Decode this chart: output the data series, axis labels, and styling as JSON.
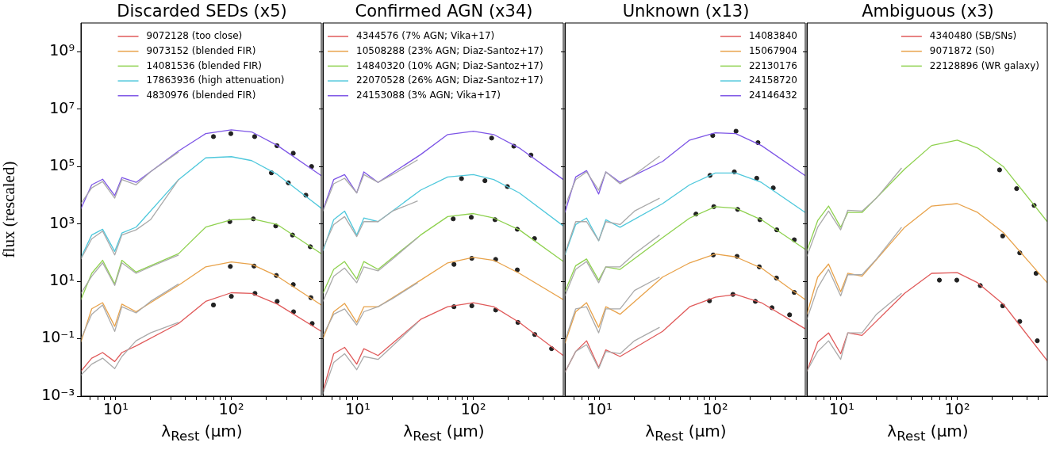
{
  "chart_data": [
    {
      "type": "line",
      "title": "Discarded SEDs (x5)",
      "xlabel": "λ$_{Rest}$ (μm)",
      "ylabel": "flux (rescaled)",
      "log": "xy",
      "legend": "top",
      "xlim": [
        5,
        600
      ],
      "ylim": [
        0.001,
        10000000000
      ],
      "xticks": [
        {
          "value": 6,
          "label": null
        },
        {
          "value": 7,
          "label": null
        },
        {
          "value": 8,
          "label": null
        },
        {
          "value": 9,
          "label": null
        },
        {
          "value": 10,
          "label": "10¹"
        },
        {
          "value": 20,
          "label": null
        },
        {
          "value": 30,
          "label": null
        },
        {
          "value": 40,
          "label": null
        },
        {
          "value": 50,
          "label": null
        },
        {
          "value": 60,
          "label": null
        },
        {
          "value": 70,
          "label": null
        },
        {
          "value": 80,
          "label": null
        },
        {
          "value": 90,
          "label": null
        },
        {
          "value": 100,
          "label": "10²"
        },
        {
          "value": 200,
          "label": null
        },
        {
          "value": 300,
          "label": null
        },
        {
          "value": 400,
          "label": null
        },
        {
          "value": 500,
          "label": null
        }
      ],
      "yticks": [
        {
          "value": 0.001,
          "label": "10⁻³"
        },
        {
          "value": 0.1,
          "label": "10⁻¹"
        },
        {
          "value": 10,
          "label": "10¹"
        },
        {
          "value": 1000,
          "label": "10³"
        },
        {
          "value": 100000,
          "label": "10⁵"
        },
        {
          "value": 10000000,
          "label": "10⁷"
        },
        {
          "value": 1000000000,
          "label": "10⁹"
        }
      ],
      "series": [
        {
          "type": "line",
          "color": "#aaaaaa",
          "x": [
            5,
            6.2,
            7.7,
            9.8,
            11.3,
            15,
            20,
            35
          ],
          "values": [
            5100,
            18000,
            30000,
            7900,
            35000,
            23000,
            66000,
            320000
          ]
        },
        {
          "type": "line",
          "color": "#aaaaaa",
          "x": [
            5,
            6.2,
            7.7,
            9.8,
            11.3,
            15,
            20,
            35
          ],
          "values": [
            60,
            300,
            560,
            83,
            410,
            620,
            1400,
            35000
          ]
        },
        {
          "type": "line",
          "color": "#aaaaaa",
          "x": [
            5,
            6.2,
            7.7,
            9.8,
            11.3,
            15,
            20,
            35
          ],
          "values": [
            3.8,
            15,
            44,
            7.2,
            44,
            19,
            32,
            83
          ]
        },
        {
          "type": "line",
          "color": "#aaaaaa",
          "x": [
            5,
            6.2,
            7.7,
            9.8,
            11.3,
            15,
            20,
            35
          ],
          "values": [
            0.1,
            0.71,
            1.5,
            0.18,
            1.3,
            0.79,
            2.0,
            8.1
          ]
        },
        {
          "type": "line",
          "color": "#aaaaaa",
          "x": [
            5,
            6.2,
            7.7,
            9.8,
            11.3,
            15,
            20,
            35
          ],
          "values": [
            0.0054,
            0.013,
            0.021,
            0.0091,
            0.024,
            0.085,
            0.16,
            0.37
          ]
        },
        {
          "type": "line",
          "name": "9072128 (too close)",
          "color": "#e05a5a",
          "x": [
            5,
            6.2,
            7.7,
            9.8,
            11.3,
            15,
            35,
            60,
            100,
            150,
            250,
            600
          ],
          "values": [
            0.0074,
            0.021,
            0.033,
            0.016,
            0.033,
            0.056,
            0.34,
            2.0,
            4.0,
            3.8,
            1.6,
            0.18
          ]
        },
        {
          "type": "line",
          "name": "9073152 (blended FIR)",
          "color": "#e8a24a",
          "x": [
            5,
            6.2,
            7.7,
            9.8,
            11.3,
            15,
            35,
            60,
            100,
            150,
            250,
            600
          ],
          "values": [
            0.077,
            1.1,
            1.8,
            0.27,
            1.6,
            0.87,
            7.3,
            32,
            47,
            39,
            15,
            1.5
          ]
        },
        {
          "type": "line",
          "name": "14081536 (blended FIR)",
          "color": "#8ed14e",
          "x": [
            5,
            6.2,
            7.7,
            9.8,
            11.3,
            15,
            35,
            60,
            100,
            150,
            250,
            600
          ],
          "values": [
            2.3,
            19,
            54,
            8.1,
            54,
            21,
            92,
            770,
            1400,
            1500,
            950,
            92
          ]
        },
        {
          "type": "line",
          "name": "17863936 (high attenuation)",
          "color": "#4fc8dc",
          "x": [
            5,
            6.2,
            7.7,
            9.8,
            11.3,
            15,
            35,
            60,
            100,
            150,
            250,
            600
          ],
          "values": [
            67,
            410,
            650,
            110,
            480,
            770,
            35000,
            200000,
            220000,
            160000,
            53000,
            3500
          ]
        },
        {
          "type": "line",
          "name": "4830976 (blended FIR)",
          "color": "#7d55e6",
          "x": [
            5,
            6.2,
            7.7,
            9.8,
            11.3,
            15,
            35,
            60,
            100,
            150,
            250,
            600
          ],
          "values": [
            3400,
            23000,
            36000,
            9700,
            41000,
            28000,
            350000,
            1400000,
            1900000,
            1600000,
            540000,
            48000
          ]
        },
        {
          "type": "scatter",
          "marker": "circle",
          "color": "#222222",
          "x": [
            70,
            99,
            159,
            248,
            343,
            494,
            222,
            311,
            441,
            97,
            155,
            242,
            338,
            482,
            98,
            157,
            245,
            343,
            487,
            70,
            100,
            160,
            249,
            345,
            500
          ],
          "values": [
            1100000,
            1400000,
            1100000,
            530000,
            290000,
            100000,
            60000,
            27000,
            10000,
            1200,
            1500,
            850,
            410,
            160,
            33,
            34,
            16,
            7.7,
            2.7,
            1.5,
            3.0,
            3.8,
            2.0,
            0.87,
            0.34
          ]
        }
      ]
    },
    {
      "type": "line",
      "title": "Confirmed AGN (x34)",
      "xlabel": "λ$_{Rest}$ (μm)",
      "log": "xy",
      "legend": "top left",
      "tick_labels": "x",
      "xlim": [
        5,
        600
      ],
      "ylim": [
        0.001,
        10000000000
      ],
      "xticks": [
        {
          "value": 6,
          "label": null
        },
        {
          "value": 7,
          "label": null
        },
        {
          "value": 8,
          "label": null
        },
        {
          "value": 9,
          "label": null
        },
        {
          "value": 10,
          "label": "10¹"
        },
        {
          "value": 20,
          "label": null
        },
        {
          "value": 30,
          "label": null
        },
        {
          "value": 40,
          "label": null
        },
        {
          "value": 50,
          "label": null
        },
        {
          "value": 60,
          "label": null
        },
        {
          "value": 70,
          "label": null
        },
        {
          "value": 80,
          "label": null
        },
        {
          "value": 90,
          "label": null
        },
        {
          "value": 100,
          "label": "10²"
        },
        {
          "value": 200,
          "label": null
        },
        {
          "value": 300,
          "label": null
        },
        {
          "value": 400,
          "label": null
        },
        {
          "value": 500,
          "label": null
        }
      ],
      "yticks": [
        {
          "value": 0.001,
          "label": null
        },
        {
          "value": 0.1,
          "label": null
        },
        {
          "value": 10,
          "label": null
        },
        {
          "value": 1000,
          "label": null
        },
        {
          "value": 100000,
          "label": null
        },
        {
          "value": 10000000,
          "label": null
        },
        {
          "value": 1000000000,
          "label": null
        }
      ],
      "series": [
        {
          "type": "line",
          "color": "#aaaaaa",
          "x": [
            5,
            6.2,
            7.7,
            9.8,
            11.3,
            15,
            20,
            33
          ],
          "values": [
            2800,
            25000,
            39000,
            12000,
            52000,
            28000,
            52000,
            170000
          ]
        },
        {
          "type": "line",
          "color": "#aaaaaa",
          "x": [
            5,
            6.2,
            7.7,
            9.8,
            11.3,
            15,
            20,
            33
          ],
          "values": [
            140,
            950,
            1800,
            360,
            1200,
            1200,
            2800,
            6300
          ]
        },
        {
          "type": "line",
          "color": "#aaaaaa",
          "x": [
            5,
            6.2,
            7.7,
            9.8,
            11.3,
            15,
            20,
            33
          ],
          "values": [
            2.0,
            15,
            29,
            8.9,
            32,
            23,
            60,
            330
          ]
        },
        {
          "type": "line",
          "color": "#aaaaaa",
          "x": [
            5,
            6.2,
            7.7,
            9.8,
            11.3,
            15,
            20,
            33
          ],
          "values": [
            0.13,
            0.71,
            1.1,
            0.3,
            0.87,
            1.3,
            2.5,
            8.9
          ]
        },
        {
          "type": "line",
          "color": "#aaaaaa",
          "x": [
            5,
            6.2,
            7.7,
            9.8,
            11.3,
            15,
            20,
            33
          ],
          "values": [
            0.0012,
            0.015,
            0.03,
            0.0083,
            0.024,
            0.019,
            0.056,
            0.37
          ]
        },
        {
          "type": "line",
          "name": "4344576 (7% AGN; Vika+17)",
          "color": "#e05a5a",
          "x": [
            5,
            6.2,
            7.7,
            9.8,
            11.3,
            15,
            35,
            60,
            100,
            150,
            250,
            600
          ],
          "values": [
            0.0015,
            0.03,
            0.05,
            0.013,
            0.045,
            0.026,
            0.47,
            1.3,
            1.8,
            1.3,
            0.37,
            0.026
          ]
        },
        {
          "type": "line",
          "name": "10508288 (23% AGN; Diaz-Santoz+17)",
          "color": "#e8a24a",
          "x": [
            5,
            6.2,
            7.7,
            9.8,
            11.3,
            15,
            35,
            60,
            100,
            150,
            250,
            600
          ],
          "values": [
            0.1,
            0.87,
            1.7,
            0.37,
            1.3,
            1.3,
            11,
            44,
            68,
            54,
            19,
            2.3
          ]
        },
        {
          "type": "line",
          "name": "14840320 (10% AGN; Diaz-Santoz+17)",
          "color": "#8ed14e",
          "x": [
            5,
            6.2,
            7.7,
            9.8,
            11.3,
            15,
            35,
            60,
            100,
            150,
            250,
            600
          ],
          "values": [
            3.8,
            26,
            49,
            12,
            49,
            26,
            410,
            1800,
            2300,
            1600,
            620,
            49
          ]
        },
        {
          "type": "line",
          "name": "22070528 (26% AGN; Diaz-Santoz+17)",
          "color": "#4fc8dc",
          "x": [
            5,
            6.2,
            7.7,
            9.8,
            11.3,
            15,
            35,
            60,
            100,
            150,
            250,
            600
          ],
          "values": [
            115,
            1400,
            2800,
            410,
            1600,
            1200,
            15000,
            43000,
            52000,
            35000,
            12000,
            850
          ]
        },
        {
          "type": "line",
          "name": "24153088 (3% AGN; Vika+17)",
          "color": "#7d55e6",
          "x": [
            5,
            6.2,
            7.7,
            9.8,
            11.3,
            15,
            35,
            60,
            100,
            150,
            250,
            600
          ],
          "values": [
            3000,
            35000,
            52000,
            12000,
            65000,
            28000,
            260000,
            1300000,
            1700000,
            1300000,
            440000,
            35000
          ]
        },
        {
          "type": "scatter",
          "marker": "circle",
          "color": "#222222",
          "x": [
            144,
            224,
            315,
            79,
            126,
            197,
            67,
            96,
            154,
            240,
            338,
            68,
            97,
            156,
            240,
            68,
            97,
            156,
            243,
            340,
            475
          ],
          "values": [
            980000,
            510000,
            250000,
            38000,
            32000,
            20000,
            1500,
            1700,
            1400,
            650,
            310,
            39,
            63,
            58,
            25,
            1.3,
            1.4,
            1.0,
            0.37,
            0.14,
            0.045
          ]
        }
      ]
    },
    {
      "type": "line",
      "title": "Unknown (x13)",
      "xlabel": "λ$_{Rest}$ (μm)",
      "log": "xy",
      "legend": "top right",
      "tick_labels": "x",
      "xlim": [
        5,
        600
      ],
      "ylim": [
        0.001,
        10000000000
      ],
      "xticks": [
        {
          "value": 6,
          "label": null
        },
        {
          "value": 7,
          "label": null
        },
        {
          "value": 8,
          "label": null
        },
        {
          "value": 9,
          "label": null
        },
        {
          "value": 10,
          "label": "10¹"
        },
        {
          "value": 20,
          "label": null
        },
        {
          "value": 30,
          "label": null
        },
        {
          "value": 40,
          "label": null
        },
        {
          "value": 50,
          "label": null
        },
        {
          "value": 60,
          "label": null
        },
        {
          "value": 70,
          "label": null
        },
        {
          "value": 80,
          "label": null
        },
        {
          "value": 90,
          "label": null
        },
        {
          "value": 100,
          "label": "10²"
        },
        {
          "value": 200,
          "label": null
        },
        {
          "value": 300,
          "label": null
        },
        {
          "value": 400,
          "label": null
        },
        {
          "value": 500,
          "label": null
        }
      ],
      "yticks": [
        {
          "value": 0.001,
          "label": null
        },
        {
          "value": 0.1,
          "label": null
        },
        {
          "value": 10,
          "label": null
        },
        {
          "value": 1000,
          "label": null
        },
        {
          "value": 100000,
          "label": null
        },
        {
          "value": 10000000,
          "label": null
        },
        {
          "value": 1000000000,
          "label": null
        }
      ],
      "series": [
        {
          "type": "line",
          "color": "#aaaaaa",
          "x": [
            5,
            6.2,
            7.7,
            9.8,
            11.3,
            15,
            20,
            33
          ],
          "values": [
            4200,
            35000,
            65000,
            15000,
            65000,
            25000,
            52000,
            230000
          ]
        },
        {
          "type": "line",
          "color": "#aaaaaa",
          "x": [
            5,
            6.2,
            7.7,
            9.8,
            11.3,
            15,
            20,
            33
          ],
          "values": [
            91,
            1200,
            1200,
            260,
            1200,
            950,
            2800,
            7900
          ]
        },
        {
          "type": "line",
          "color": "#aaaaaa",
          "x": [
            5,
            6.2,
            7.7,
            9.8,
            11.3,
            15,
            20,
            33
          ],
          "values": [
            3.1,
            26,
            49,
            8.9,
            32,
            32,
            91,
            410
          ]
        },
        {
          "type": "line",
          "color": "#aaaaaa",
          "x": [
            5,
            6.2,
            7.7,
            9.8,
            11.3,
            15,
            20,
            33
          ],
          "values": [
            0.085,
            1.1,
            1.3,
            0.16,
            1.1,
            1.1,
            4.8,
            14
          ]
        },
        {
          "type": "line",
          "color": "#aaaaaa",
          "x": [
            5,
            6.2,
            7.7,
            9.8,
            11.3,
            15,
            20,
            33
          ],
          "values": [
            0.0068,
            0.036,
            0.062,
            0.0091,
            0.036,
            0.03,
            0.085,
            0.25
          ]
        },
        {
          "type": "line",
          "name": "14083840",
          "color": "#e05a5a",
          "x": [
            5,
            6.2,
            7.7,
            9.8,
            11.3,
            15,
            35,
            60,
            100,
            150,
            250,
            600
          ],
          "values": [
            0.0068,
            0.036,
            0.085,
            0.01,
            0.041,
            0.024,
            0.18,
            1.3,
            2.8,
            3.5,
            1.8,
            0.22
          ]
        },
        {
          "type": "line",
          "name": "15067904",
          "color": "#e8a24a",
          "x": [
            5,
            6.2,
            7.7,
            9.8,
            11.3,
            15,
            35,
            60,
            100,
            150,
            250,
            600
          ],
          "values": [
            0.069,
            0.87,
            1.8,
            0.25,
            1.3,
            0.71,
            14,
            44,
            89,
            71,
            29,
            2.3
          ]
        },
        {
          "type": "line",
          "name": "22130176",
          "color": "#8ed14e",
          "x": [
            5,
            6.2,
            7.7,
            9.8,
            11.3,
            15,
            35,
            60,
            100,
            150,
            250,
            600
          ],
          "values": [
            4.3,
            35,
            60,
            11,
            32,
            26,
            330,
            1600,
            4000,
            3500,
            1400,
            130
          ]
        },
        {
          "type": "line",
          "name": "24158720",
          "color": "#4fc8dc",
          "x": [
            5,
            6.2,
            7.7,
            9.8,
            11.3,
            15,
            35,
            60,
            100,
            150,
            250,
            600
          ],
          "values": [
            83,
            950,
            1600,
            260,
            1400,
            760,
            5100,
            23000,
            59000,
            59000,
            28000,
            2500
          ]
        },
        {
          "type": "line",
          "name": "24146432",
          "color": "#7d55e6",
          "x": [
            5,
            6.2,
            7.7,
            9.8,
            11.3,
            15,
            35,
            60,
            100,
            150,
            250,
            600
          ],
          "values": [
            2500,
            43000,
            72000,
            11000,
            65000,
            28000,
            150000,
            830000,
            1500000,
            1400000,
            540000,
            48000
          ]
        },
        {
          "type": "scatter",
          "marker": "circle",
          "color": "#222222",
          "x": [
            95,
            151,
            234,
            90,
            146,
            228,
            317,
            68,
            97,
            156,
            243,
            340,
            482,
            96,
            154,
            240,
            338,
            482,
            89,
            142,
            222,
            309,
            439
          ],
          "values": [
            1200000,
            1700000,
            680000,
            49000,
            65000,
            39000,
            18000,
            2200,
            4000,
            3200,
            1400,
            620,
            280,
            83,
            74,
            32,
            13,
            4.1,
            2.1,
            3.5,
            2.0,
            1.2,
            0.68
          ]
        }
      ]
    },
    {
      "type": "line",
      "title": "Ambiguous (x3)",
      "xlabel": "λ$_{Rest}$ (μm)",
      "log": "xy",
      "legend": "top right",
      "tick_labels": "x",
      "xlim": [
        5,
        600
      ],
      "ylim": [
        0.001,
        10000000000
      ],
      "xticks": [
        {
          "value": 6,
          "label": null
        },
        {
          "value": 7,
          "label": null
        },
        {
          "value": 8,
          "label": null
        },
        {
          "value": 9,
          "label": null
        },
        {
          "value": 10,
          "label": "10¹"
        },
        {
          "value": 20,
          "label": null
        },
        {
          "value": 30,
          "label": null
        },
        {
          "value": 40,
          "label": null
        },
        {
          "value": 50,
          "label": null
        },
        {
          "value": 60,
          "label": null
        },
        {
          "value": 70,
          "label": null
        },
        {
          "value": 80,
          "label": null
        },
        {
          "value": 90,
          "label": null
        },
        {
          "value": 100,
          "label": "10²"
        },
        {
          "value": 200,
          "label": null
        },
        {
          "value": 300,
          "label": null
        },
        {
          "value": 400,
          "label": null
        },
        {
          "value": 500,
          "label": null
        }
      ],
      "yticks": [
        {
          "value": 0.001,
          "label": null
        },
        {
          "value": 0.1,
          "label": null
        },
        {
          "value": 10,
          "label": null
        },
        {
          "value": 1000,
          "label": null
        },
        {
          "value": 100000,
          "label": null
        },
        {
          "value": 10000000,
          "label": null
        },
        {
          "value": 1000000000,
          "label": null
        }
      ],
      "series": [
        {
          "type": "line",
          "color": "#aaaaaa",
          "x": [
            5,
            6.2,
            7.7,
            9.8,
            11.3,
            15,
            20,
            33
          ],
          "values": [
            74,
            760,
            2800,
            620,
            3000,
            2800,
            7900,
            89000
          ]
        },
        {
          "type": "line",
          "color": "#aaaaaa",
          "x": [
            5,
            6.2,
            7.7,
            9.8,
            11.3,
            15,
            20,
            33
          ],
          "values": [
            0.47,
            5.9,
            26,
            3.1,
            17,
            17,
            60,
            760
          ]
        },
        {
          "type": "line",
          "color": "#aaaaaa",
          "x": [
            5,
            6.2,
            7.7,
            9.8,
            11.3,
            15,
            20,
            33
          ],
          "values": [
            0.0074,
            0.036,
            0.085,
            0.019,
            0.16,
            0.16,
            0.71,
            3.8
          ]
        },
        {
          "type": "line",
          "name": "4340480 (SB/SNs)",
          "color": "#e05a5a",
          "x": [
            5,
            6.2,
            7.7,
            9.8,
            11.3,
            15,
            35,
            60,
            100,
            150,
            250,
            600
          ],
          "values": [
            0.0074,
            0.076,
            0.16,
            0.03,
            0.16,
            0.13,
            3.8,
            19,
            20,
            8.9,
            1.6,
            0.017
          ]
        },
        {
          "type": "line",
          "name": "9071872 (S0)",
          "color": "#e8a24a",
          "x": [
            5,
            6.2,
            7.7,
            9.8,
            11.3,
            15,
            35,
            60,
            100,
            150,
            250,
            600
          ],
          "values": [
            0.71,
            14,
            40,
            4.3,
            19,
            15,
            760,
            4200,
            5100,
            2500,
            500,
            8.9
          ]
        },
        {
          "type": "line",
          "name": "22128896 (WR galaxy)",
          "color": "#8ed14e",
          "x": [
            5,
            6.2,
            7.7,
            9.8,
            11.3,
            15,
            35,
            60,
            100,
            150,
            250,
            600
          ],
          "values": [
            115,
            1300,
            4200,
            760,
            2500,
            2500,
            81000,
            540000,
            830000,
            440000,
            100000,
            1200
          ]
        },
        {
          "type": "scatter",
          "marker": "circle",
          "color": "#222222",
          "x": [
            232,
            326,
            462,
            247,
            347,
            480,
            70,
            99,
            158,
            247,
            347,
            492
          ],
          "values": [
            76000,
            17000,
            4400,
            380,
            98,
            19,
            11,
            11,
            7.1,
            1.4,
            0.4,
            0.085
          ]
        }
      ]
    }
  ]
}
